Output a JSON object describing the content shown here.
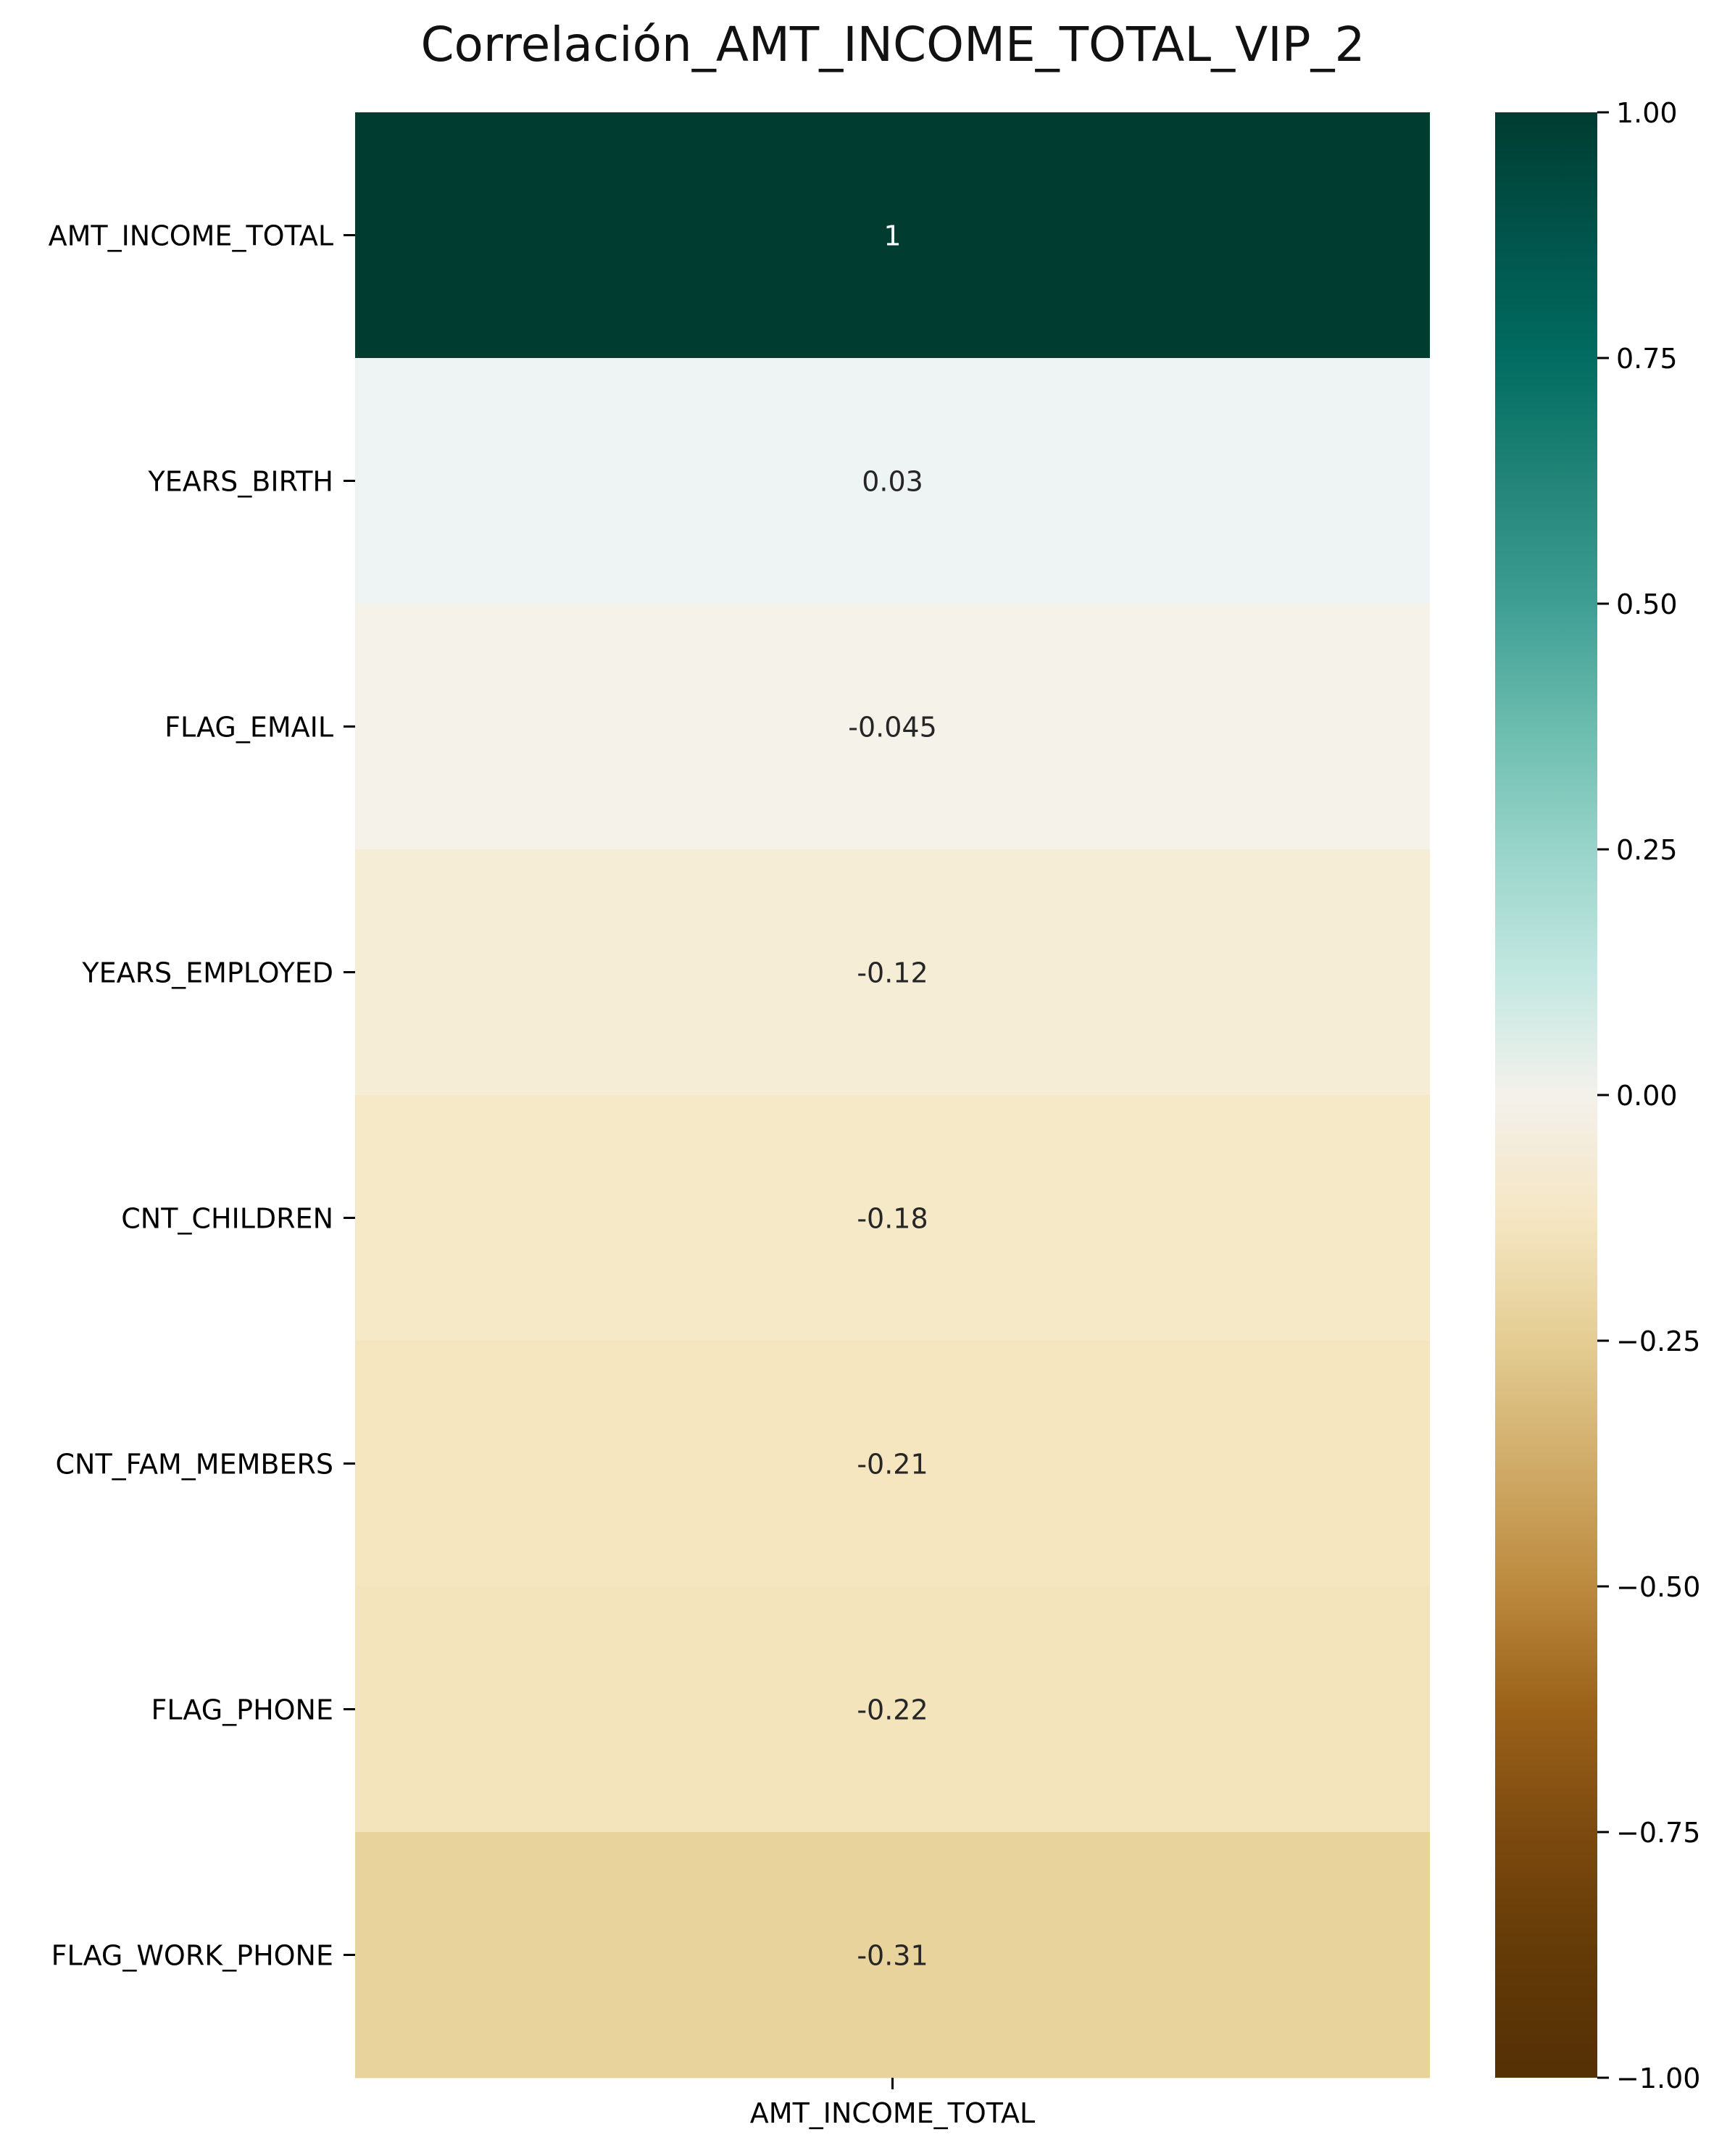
{
  "chart_data": {
    "type": "heatmap",
    "title": "Correlación_AMT_INCOME_TOTAL_VIP_2",
    "columns": [
      "AMT_INCOME_TOTAL"
    ],
    "rows": [
      "AMT_INCOME_TOTAL",
      "YEARS_BIRTH",
      "FLAG_EMAIL",
      "YEARS_EMPLOYED",
      "CNT_CHILDREN",
      "CNT_FAM_MEMBERS",
      "FLAG_PHONE",
      "FLAG_WORK_PHONE"
    ],
    "values": [
      1,
      0.03,
      -0.045,
      -0.12,
      -0.18,
      -0.21,
      -0.22,
      -0.31
    ],
    "annotations": [
      "1",
      "0.03",
      "-0.045",
      "-0.12",
      "-0.18",
      "-0.21",
      "-0.22",
      "-0.31"
    ],
    "colormap": "BrBG",
    "vmin": -1,
    "vmax": 1,
    "colorbar_ticks": [
      1.0,
      0.75,
      0.5,
      0.25,
      0.0,
      -0.25,
      -0.5,
      -0.75,
      -1.0
    ],
    "colorbar_tick_labels": [
      "1.00",
      "0.75",
      "0.50",
      "0.25",
      "0.00",
      "−0.25",
      "−0.50",
      "−0.75",
      "−1.00"
    ],
    "grid": false
  }
}
